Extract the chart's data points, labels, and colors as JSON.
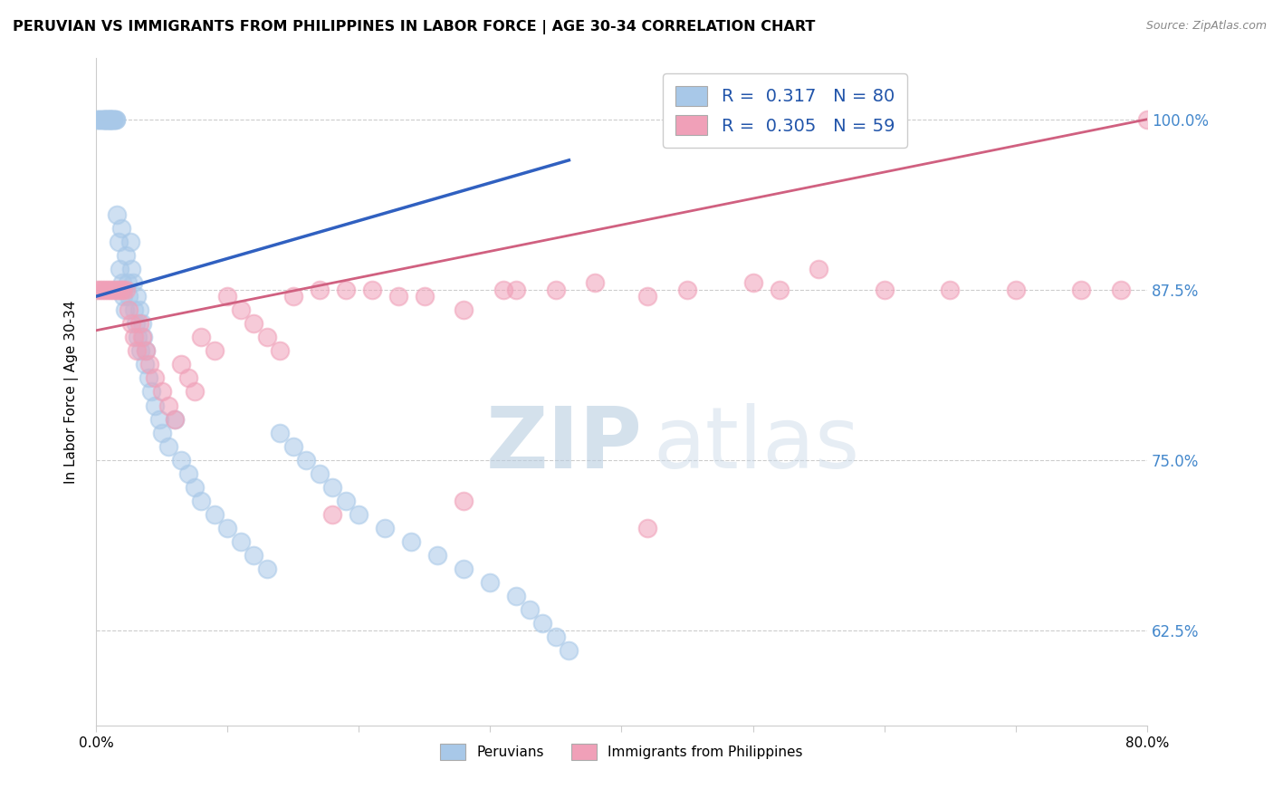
{
  "title": "PERUVIAN VS IMMIGRANTS FROM PHILIPPINES IN LABOR FORCE | AGE 30-34 CORRELATION CHART",
  "source": "Source: ZipAtlas.com",
  "ylabel": "In Labor Force | Age 30-34",
  "yticks": [
    0.625,
    0.75,
    0.875,
    1.0
  ],
  "ytick_labels": [
    "62.5%",
    "75.0%",
    "87.5%",
    "100.0%"
  ],
  "xlim": [
    0.0,
    0.8
  ],
  "ylim": [
    0.555,
    1.045
  ],
  "blue_R": 0.317,
  "blue_N": 80,
  "pink_R": 0.305,
  "pink_N": 59,
  "blue_color": "#A8C8E8",
  "pink_color": "#F0A0B8",
  "blue_line_color": "#3060C0",
  "pink_line_color": "#D06080",
  "legend_label_blue": "Peruvians",
  "legend_label_pink": "Immigrants from Philippines",
  "watermark_zip": "ZIP",
  "watermark_atlas": "atlas",
  "blue_x": [
    0.001,
    0.002,
    0.003,
    0.004,
    0.005,
    0.006,
    0.006,
    0.007,
    0.007,
    0.008,
    0.008,
    0.009,
    0.009,
    0.01,
    0.01,
    0.011,
    0.011,
    0.012,
    0.012,
    0.013,
    0.013,
    0.014,
    0.015,
    0.015,
    0.016,
    0.017,
    0.018,
    0.019,
    0.02,
    0.021,
    0.022,
    0.023,
    0.024,
    0.025,
    0.026,
    0.027,
    0.028,
    0.029,
    0.03,
    0.031,
    0.032,
    0.033,
    0.034,
    0.035,
    0.036,
    0.037,
    0.038,
    0.04,
    0.042,
    0.045,
    0.048,
    0.05,
    0.055,
    0.06,
    0.065,
    0.07,
    0.075,
    0.08,
    0.09,
    0.1,
    0.11,
    0.12,
    0.13,
    0.14,
    0.15,
    0.16,
    0.17,
    0.18,
    0.19,
    0.2,
    0.22,
    0.24,
    0.26,
    0.28,
    0.3,
    0.32,
    0.33,
    0.34,
    0.35,
    0.36
  ],
  "blue_y": [
    1.0,
    1.0,
    1.0,
    1.0,
    1.0,
    1.0,
    1.0,
    1.0,
    1.0,
    1.0,
    1.0,
    1.0,
    1.0,
    1.0,
    1.0,
    1.0,
    1.0,
    1.0,
    1.0,
    1.0,
    1.0,
    1.0,
    1.0,
    1.0,
    0.93,
    0.91,
    0.89,
    0.92,
    0.88,
    0.87,
    0.86,
    0.9,
    0.88,
    0.87,
    0.91,
    0.89,
    0.88,
    0.86,
    0.85,
    0.87,
    0.84,
    0.86,
    0.83,
    0.85,
    0.84,
    0.82,
    0.83,
    0.81,
    0.8,
    0.79,
    0.78,
    0.77,
    0.76,
    0.78,
    0.75,
    0.74,
    0.73,
    0.72,
    0.71,
    0.7,
    0.69,
    0.68,
    0.67,
    0.77,
    0.76,
    0.75,
    0.74,
    0.73,
    0.72,
    0.71,
    0.7,
    0.69,
    0.68,
    0.67,
    0.66,
    0.65,
    0.64,
    0.63,
    0.62,
    0.61
  ],
  "pink_x": [
    0.001,
    0.003,
    0.005,
    0.007,
    0.009,
    0.011,
    0.013,
    0.015,
    0.017,
    0.019,
    0.021,
    0.023,
    0.025,
    0.027,
    0.029,
    0.031,
    0.033,
    0.035,
    0.038,
    0.041,
    0.045,
    0.05,
    0.055,
    0.06,
    0.065,
    0.07,
    0.075,
    0.08,
    0.09,
    0.1,
    0.11,
    0.12,
    0.13,
    0.14,
    0.15,
    0.17,
    0.19,
    0.21,
    0.23,
    0.25,
    0.28,
    0.31,
    0.35,
    0.38,
    0.42,
    0.45,
    0.5,
    0.55,
    0.6,
    0.65,
    0.7,
    0.75,
    0.78,
    0.8,
    0.52,
    0.32,
    0.28,
    0.42,
    0.18
  ],
  "pink_y": [
    0.875,
    0.875,
    0.875,
    0.875,
    0.875,
    0.875,
    0.875,
    0.875,
    0.875,
    0.875,
    0.875,
    0.875,
    0.86,
    0.85,
    0.84,
    0.83,
    0.85,
    0.84,
    0.83,
    0.82,
    0.81,
    0.8,
    0.79,
    0.78,
    0.82,
    0.81,
    0.8,
    0.84,
    0.83,
    0.87,
    0.86,
    0.85,
    0.84,
    0.83,
    0.87,
    0.875,
    0.875,
    0.875,
    0.87,
    0.87,
    0.86,
    0.875,
    0.875,
    0.88,
    0.87,
    0.875,
    0.88,
    0.89,
    0.875,
    0.875,
    0.875,
    0.875,
    0.875,
    1.0,
    0.875,
    0.875,
    0.72,
    0.7,
    0.71
  ],
  "blue_trend_x": [
    0.0,
    0.36
  ],
  "blue_trend_y": [
    0.87,
    0.97
  ],
  "pink_trend_x": [
    0.0,
    0.8
  ],
  "pink_trend_y": [
    0.845,
    1.0
  ]
}
